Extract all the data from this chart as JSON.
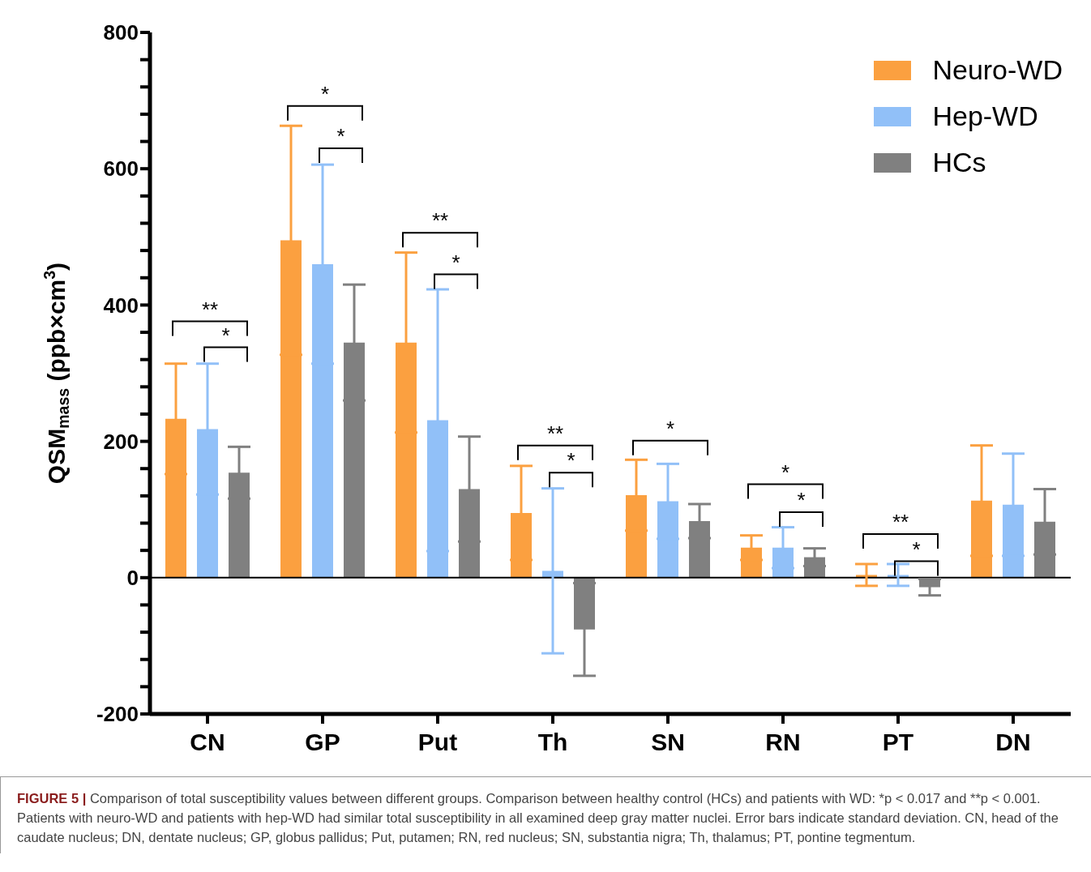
{
  "chart_data": {
    "type": "bar",
    "ylabel": "QSM$_{mass}$ (ppb×cm$^{3}$)",
    "categories": [
      "CN",
      "GP",
      "Put",
      "Th",
      "SN",
      "RN",
      "PT",
      "DN"
    ],
    "series": [
      {
        "name": "Neuro-WD",
        "color": "#fba040",
        "values": [
          233,
          495,
          345,
          95,
          121,
          44,
          4,
          113
        ],
        "errors": [
          81,
          168,
          132,
          69,
          52,
          18,
          16,
          81
        ]
      },
      {
        "name": "Hep-WD",
        "color": "#91c0f8",
        "values": [
          218,
          460,
          231,
          10,
          112,
          44,
          4,
          107
        ],
        "errors": [
          96,
          146,
          192,
          121,
          55,
          30,
          16,
          75
        ]
      },
      {
        "name": "HCs",
        "color": "#808080",
        "values": [
          154,
          345,
          130,
          -76,
          83,
          30,
          -14,
          82
        ],
        "errors": [
          38,
          85,
          77,
          68,
          25,
          13,
          12,
          48
        ]
      }
    ],
    "ylim": [
      -200,
      800
    ],
    "yticks": [
      -200,
      {
        "value": -160,
        "label": null
      },
      {
        "value": -120,
        "label": null
      },
      {
        "value": -80,
        "label": null
      },
      {
        "value": -40,
        "label": null
      },
      0,
      {
        "value": 40,
        "label": null
      },
      {
        "value": 80,
        "label": null
      },
      {
        "value": 120,
        "label": null
      },
      {
        "value": 160,
        "label": null
      },
      200,
      {
        "value": 240,
        "label": null
      },
      {
        "value": 280,
        "label": null
      },
      {
        "value": 320,
        "label": null
      },
      {
        "value": 360,
        "label": null
      },
      400,
      {
        "value": 440,
        "label": null
      },
      {
        "value": 480,
        "label": null
      },
      {
        "value": 520,
        "label": null
      },
      {
        "value": 560,
        "label": null
      },
      600,
      {
        "value": 640,
        "label": null
      },
      {
        "value": 680,
        "label": null
      },
      {
        "value": 720,
        "label": null
      },
      {
        "value": 760,
        "label": null
      },
      800
    ],
    "legend": "top right",
    "ref_lines": [
      {
        "axis": "y",
        "value": 0
      }
    ],
    "annotations": [
      "**",
      "*",
      "*",
      "*",
      "**",
      "*",
      "**",
      "*",
      "*",
      "*",
      "*",
      "**",
      "*",
      "FIGURE 5 |",
      "Comparison of total susceptibility values between different groups. Comparison between healthy control (HCs) and patients with WD: *p < 0.017 and **p < 0.001. Patients with neuro-WD and patients with hep-WD had similar total susceptibility in all examined deep gray matter nuclei. Error bars indicate standard deviation. CN, head of the caudate nucleus; DN, dentate nucleus; GP, globus pallidus; Put, putamen; RN, red nucleus; SN, substantia nigra; Th, thalamus; PT, pontine tegmentum."
    ]
  }
}
